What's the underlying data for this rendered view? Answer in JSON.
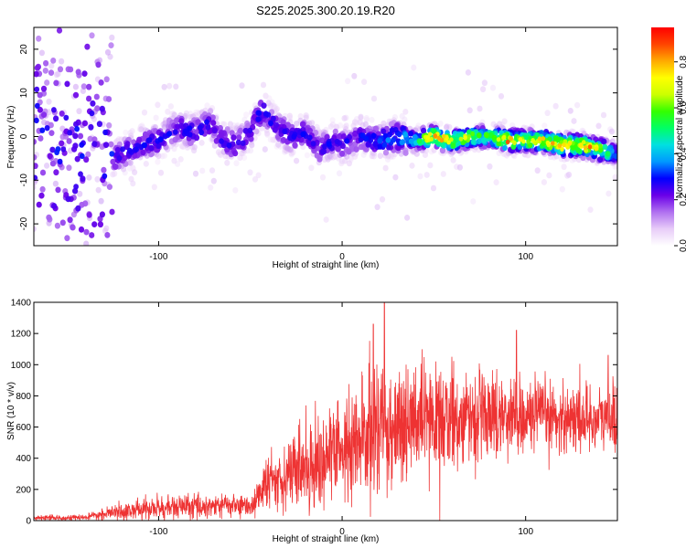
{
  "title": "S225.2025.300.20.19.R20",
  "chart_data": [
    {
      "type": "heatmap",
      "name": "spectrogram",
      "xlabel": "Height of straight line (km)",
      "ylabel": "Frequency (Hz)",
      "xlim": [
        -168,
        150
      ],
      "ylim": [
        -25,
        25
      ],
      "xticks": [
        -100,
        0,
        100
      ],
      "yticks": [
        -20,
        -10,
        0,
        10,
        20
      ],
      "grid": false,
      "colorbar": {
        "label": "Normalized spectral amplitude",
        "range": [
          0,
          0.95
        ],
        "ticks": [
          0.0,
          0.2,
          0.4,
          0.6,
          0.8
        ],
        "colormap": [
          "#ffffff",
          "#e8ccf8",
          "#b070f0",
          "#6a00e8",
          "#0000ff",
          "#0099ff",
          "#00e0e0",
          "#00ff66",
          "#33ff00",
          "#ccff00",
          "#ffff00",
          "#ffaa00",
          "#ff4400",
          "#ff0000"
        ]
      },
      "dominant_ridge": [
        [
          -165,
          0
        ],
        [
          -140,
          -2
        ],
        [
          -125,
          -5
        ],
        [
          -120,
          -4
        ],
        [
          -110,
          -2
        ],
        [
          -100,
          -1
        ],
        [
          -90,
          2
        ],
        [
          -80,
          1
        ],
        [
          -72,
          3
        ],
        [
          -65,
          -1
        ],
        [
          -58,
          -2
        ],
        [
          -50,
          1
        ],
        [
          -44,
          6
        ],
        [
          -40,
          4
        ],
        [
          -35,
          2
        ],
        [
          -28,
          0
        ],
        [
          -20,
          1
        ],
        [
          -12,
          -3
        ],
        [
          -5,
          -1
        ],
        [
          0,
          -2
        ],
        [
          10,
          0
        ],
        [
          20,
          -1
        ],
        [
          30,
          0
        ],
        [
          40,
          -1
        ],
        [
          50,
          0
        ],
        [
          60,
          -1
        ],
        [
          70,
          0
        ],
        [
          80,
          0
        ],
        [
          90,
          -1
        ],
        [
          100,
          -1
        ],
        [
          110,
          -1
        ],
        [
          120,
          -2
        ],
        [
          130,
          -2
        ],
        [
          140,
          -3
        ],
        [
          150,
          -4
        ]
      ],
      "ridge_peak_amplitude": [
        0.15,
        0.2,
        0.3,
        0.3,
        0.3,
        0.3,
        0.3,
        0.3,
        0.3,
        0.3,
        0.3,
        0.3,
        0.35,
        0.3,
        0.3,
        0.3,
        0.3,
        0.3,
        0.3,
        0.3,
        0.3,
        0.35,
        0.4,
        0.5,
        0.9,
        0.8,
        0.7,
        0.6,
        0.9,
        0.8,
        0.85,
        0.9,
        0.9,
        0.85,
        0.35
      ]
    },
    {
      "type": "line",
      "name": "snr",
      "xlabel": "Height of straight line (km)",
      "ylabel": "SNR (10 * v/v)",
      "xlim": [
        -168,
        150
      ],
      "ylim": [
        0,
        1400
      ],
      "xticks": [
        -100,
        0,
        100
      ],
      "yticks": [
        0,
        200,
        400,
        600,
        800,
        1000,
        1200,
        1400
      ],
      "grid": false,
      "line_color": "#ee3333",
      "trend_x": [
        -168,
        -140,
        -130,
        -120,
        -100,
        -80,
        -60,
        -50,
        -40,
        -30,
        -20,
        -10,
        0,
        10,
        20,
        30,
        40,
        50,
        60,
        70,
        80,
        90,
        100,
        110,
        120,
        130,
        140,
        150
      ],
      "trend_mean": [
        15,
        20,
        40,
        60,
        80,
        90,
        100,
        90,
        250,
        300,
        350,
        400,
        450,
        500,
        600,
        620,
        620,
        640,
        660,
        660,
        680,
        680,
        670,
        670,
        660,
        660,
        650,
        650
      ],
      "trend_spread": [
        15,
        15,
        30,
        50,
        70,
        70,
        70,
        60,
        150,
        200,
        250,
        280,
        320,
        350,
        400,
        380,
        330,
        300,
        280,
        250,
        250,
        230,
        220,
        210,
        200,
        200,
        200,
        200
      ],
      "notable_peaks": [
        [
          17,
          1260
        ],
        [
          23,
          1400
        ],
        [
          95,
          1220
        ],
        [
          145,
          1060
        ]
      ]
    }
  ]
}
